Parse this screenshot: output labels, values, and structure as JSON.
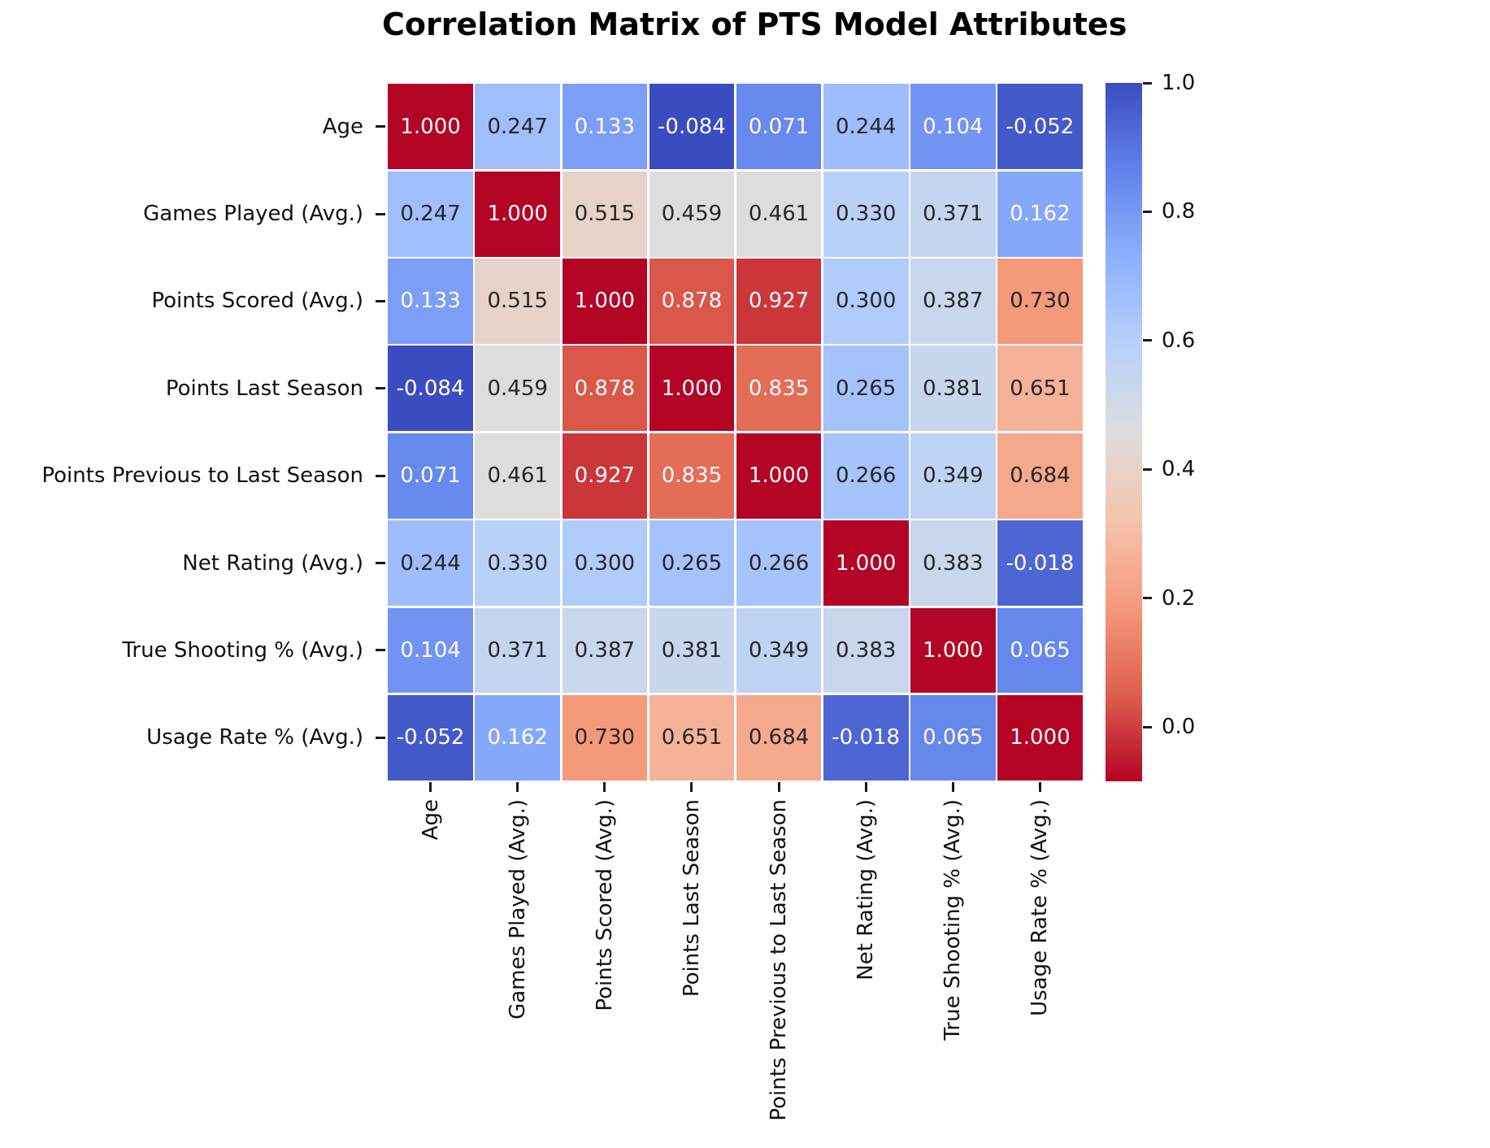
{
  "title": "Correlation Matrix of PTS Model Attributes",
  "chart_data": {
    "type": "heatmap",
    "title": "Correlation Matrix of PTS Model Attributes",
    "xlabel": "",
    "ylabel": "",
    "categories": [
      "Age",
      "Games Played (Avg.)",
      "Points Scored (Avg.)",
      "Points Last Season",
      "Points Previous to Last Season",
      "Net Rating (Avg.)",
      "True Shooting % (Avg.)",
      "Usage Rate % (Avg.)"
    ],
    "matrix": [
      [
        1.0,
        0.247,
        0.133,
        -0.084,
        0.071,
        0.244,
        0.104,
        -0.052
      ],
      [
        0.247,
        1.0,
        0.515,
        0.459,
        0.461,
        0.33,
        0.371,
        0.162
      ],
      [
        0.133,
        0.515,
        1.0,
        0.878,
        0.927,
        0.3,
        0.387,
        0.73
      ],
      [
        -0.084,
        0.459,
        0.878,
        1.0,
        0.835,
        0.265,
        0.381,
        0.651
      ],
      [
        0.071,
        0.461,
        0.927,
        0.835,
        1.0,
        0.266,
        0.349,
        0.684
      ],
      [
        0.244,
        0.33,
        0.3,
        0.265,
        0.266,
        1.0,
        0.383,
        -0.018
      ],
      [
        0.104,
        0.371,
        0.387,
        0.381,
        0.349,
        0.383,
        1.0,
        0.065
      ],
      [
        -0.052,
        0.162,
        0.73,
        0.651,
        0.684,
        -0.018,
        0.065,
        1.0
      ]
    ],
    "value_decimals": 3,
    "annotations": true,
    "grid_gap_color": "#ffffff",
    "colormap": "coolwarm",
    "vmin": -0.084,
    "vmax": 1.0,
    "colorbar": {
      "position": "right",
      "tick_values": [
        1.0,
        0.8,
        0.6,
        0.4,
        0.2,
        0.0
      ],
      "tick_labels": [
        "1.0",
        "0.8",
        "0.6",
        "0.4",
        "0.2",
        "0.0"
      ]
    }
  },
  "colors": {
    "background": "#ffffff",
    "title_text": "#000000",
    "axis_label_text": "#111111",
    "tick_mark": "#1a1a1a",
    "cell_text_dark": "#262626",
    "cell_text_light": "#ffffff",
    "coolwarm_stops": [
      "#3b4cc0",
      "#6282ea",
      "#8db0fe",
      "#b8d0f9",
      "#dddddd",
      "#f5c4ad",
      "#f49a7b",
      "#de604d",
      "#b40426"
    ]
  }
}
